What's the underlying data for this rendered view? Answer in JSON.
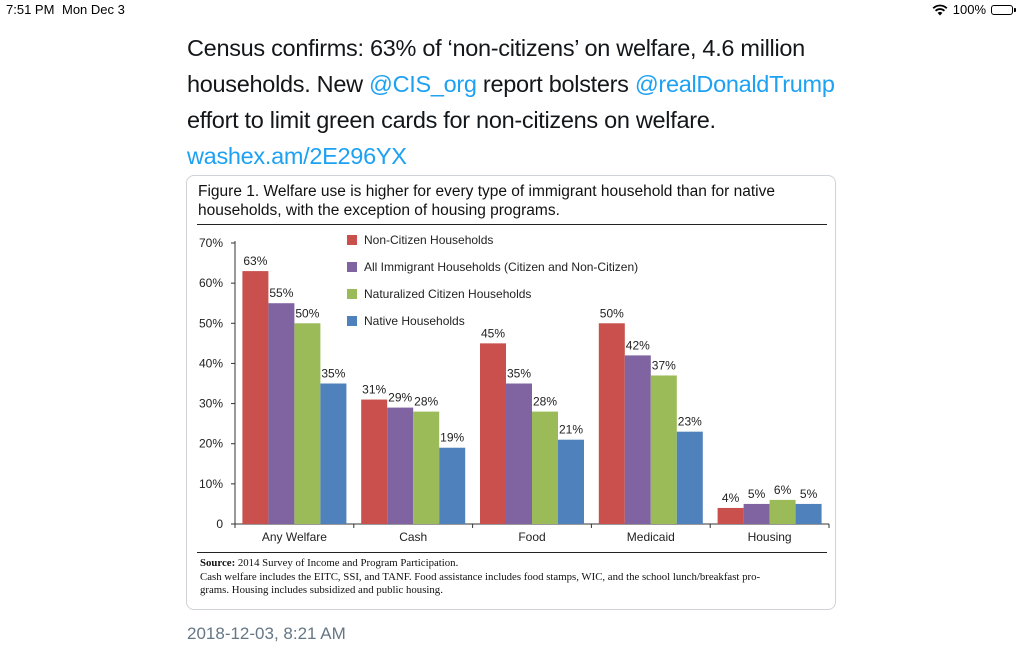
{
  "status_bar": {
    "time": "7:51 PM",
    "date": "Mon Dec 3",
    "battery": "100%"
  },
  "tweet": {
    "line1": "Census confirms: 63% of ‘non-citizens’ on welfare, 4.6 million",
    "line2_pre": "households. New ",
    "mention1": "@CIS_org",
    "line2_mid": " report bolsters ",
    "mention2": "@realDonaldTrump",
    "line3": "effort to limit green cards for non-citizens on welfare.",
    "link": "washex.am/2E296YX",
    "timestamp": "2018-12-03, 8:21 AM"
  },
  "figure": {
    "title_line1": "Figure 1. Welfare use is higher for every type of immigrant household than for native",
    "title_line2": "households, with the exception of housing programs.",
    "source_label": "Source:",
    "source_text": " 2014 Survey of Income and Program Participation.",
    "note_line1": "Cash welfare includes the EITC, SSI, and TANF. Food assistance includes food stamps, WIC, and the school lunch/breakfast pro-",
    "note_line2": "grams. Housing includes subsidized and public housing."
  },
  "chart_data": {
    "type": "bar",
    "title": "Figure 1. Welfare use is higher for every type of immigrant household than for native households, with the exception of housing programs.",
    "categories": [
      "Any Welfare",
      "Cash",
      "Food",
      "Medicaid",
      "Housing"
    ],
    "series": [
      {
        "name": "Non-Citizen Households",
        "color": "#c9504d",
        "values": [
          63,
          31,
          45,
          50,
          4
        ]
      },
      {
        "name": "All Immigrant Households (Citizen and Non-Citizen)",
        "color": "#8064a2",
        "values": [
          55,
          29,
          35,
          42,
          5
        ]
      },
      {
        "name": "Naturalized Citizen Households",
        "color": "#9bbb59",
        "values": [
          50,
          28,
          28,
          37,
          6
        ]
      },
      {
        "name": "Native Households",
        "color": "#4f81bd",
        "values": [
          35,
          19,
          21,
          23,
          5
        ]
      }
    ],
    "y_ticks": [
      "0",
      "10%",
      "20%",
      "30%",
      "40%",
      "50%",
      "60%",
      "70%"
    ],
    "ylim": [
      0,
      70
    ],
    "legend_position": "top-center"
  }
}
